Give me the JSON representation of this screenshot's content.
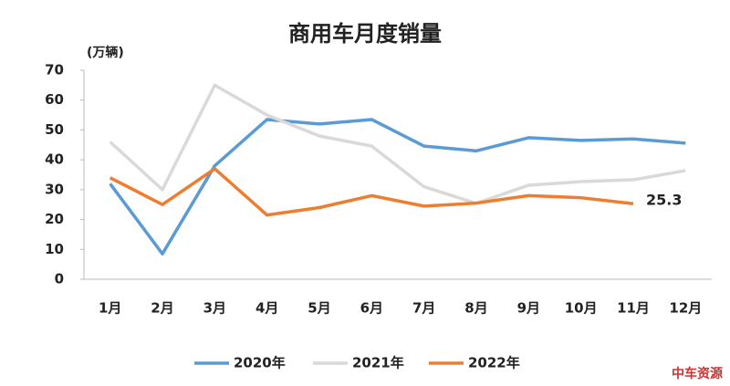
{
  "chart_data": {
    "type": "line",
    "title": "商用车月度销量",
    "y_label": "(万辆)",
    "watermark": "中车资源",
    "categories": [
      "1月",
      "2月",
      "3月",
      "4月",
      "5月",
      "6月",
      "7月",
      "8月",
      "9月",
      "10月",
      "11月",
      "12月"
    ],
    "series": [
      {
        "name": "2020年",
        "color": "#5b9bd5",
        "values": [
          32,
          8.5,
          38,
          53.5,
          52,
          53.5,
          44.6,
          43,
          47.4,
          46.5,
          47,
          45.6
        ]
      },
      {
        "name": "2021年",
        "color": "#d9d9d9",
        "values": [
          46,
          30,
          65,
          55,
          48,
          44.6,
          31,
          25.4,
          31.5,
          32.7,
          33.3,
          36.4
        ]
      },
      {
        "name": "2022年",
        "color": "#ed7d31",
        "values": [
          34,
          25,
          37,
          21.5,
          24,
          28,
          24.5,
          25.5,
          28,
          27.3,
          25.3,
          null
        ],
        "show_last_value": true
      }
    ],
    "ylim": [
      0,
      70
    ],
    "yticks": [
      0,
      10,
      20,
      30,
      40,
      50,
      60,
      70
    ],
    "grid": false,
    "legend": "bottom"
  }
}
